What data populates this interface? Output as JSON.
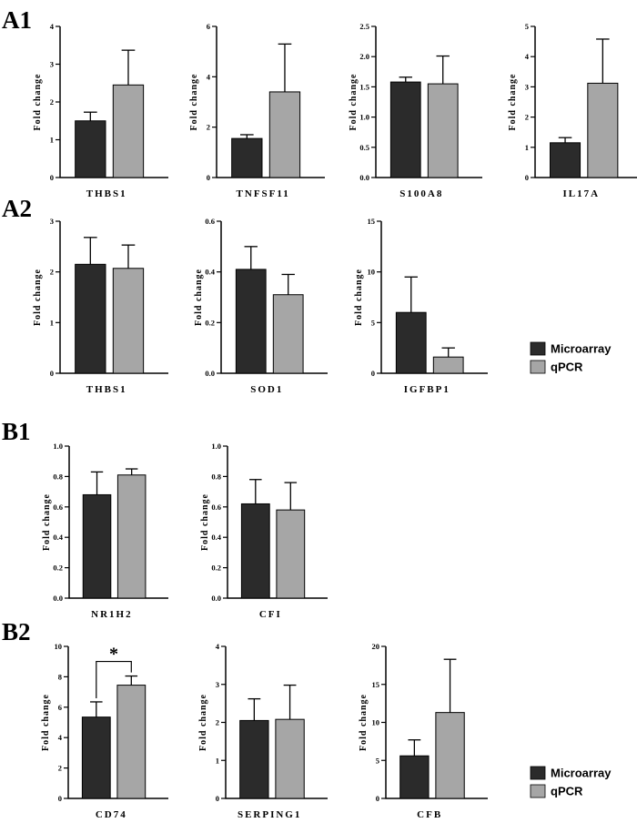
{
  "panels": {
    "a1": "A1",
    "a2": "A2",
    "b1": "B1",
    "b2": "B2"
  },
  "colors": {
    "microarray": "#2b2b2b",
    "qpcr": "#a6a6a6",
    "axis": "#000000"
  },
  "legend": {
    "microarray": "Microarray",
    "qpcr": "qPCR"
  },
  "chart_data": [
    {
      "type": "bar",
      "panel": "A1",
      "gene": "THBS1",
      "ylabel": "Fold change",
      "ylim": [
        0,
        4
      ],
      "yticks": [
        0,
        1,
        2,
        3,
        4
      ],
      "tick_labels": [
        "0",
        "1",
        "2",
        "3",
        "4"
      ],
      "series": [
        {
          "name": "Microarray",
          "values": [
            1.5
          ],
          "errors": [
            0.23
          ]
        },
        {
          "name": "qPCR",
          "values": [
            2.45
          ],
          "errors": [
            0.92
          ]
        }
      ]
    },
    {
      "type": "bar",
      "panel": "A1",
      "gene": "TNFSF11",
      "ylabel": "Fold change",
      "ylim": [
        0,
        6
      ],
      "yticks": [
        0,
        2,
        4,
        6
      ],
      "tick_labels": [
        "0",
        "2",
        "4",
        "6"
      ],
      "series": [
        {
          "name": "Microarray",
          "values": [
            1.55
          ],
          "errors": [
            0.15
          ]
        },
        {
          "name": "qPCR",
          "values": [
            3.4
          ],
          "errors": [
            1.9
          ]
        }
      ]
    },
    {
      "type": "bar",
      "panel": "A1",
      "gene": "S100A8",
      "ylabel": "Fold change",
      "ylim": [
        0,
        2.5
      ],
      "yticks": [
        0,
        0.5,
        1,
        1.5,
        2,
        2.5
      ],
      "tick_labels": [
        "0.0",
        "0.5",
        "1.0",
        "1.5",
        "2.0",
        "2.5"
      ],
      "series": [
        {
          "name": "Microarray",
          "values": [
            1.58
          ],
          "errors": [
            0.08
          ]
        },
        {
          "name": "qPCR",
          "values": [
            1.55
          ],
          "errors": [
            0.46
          ]
        }
      ]
    },
    {
      "type": "bar",
      "panel": "A1",
      "gene": "IL17A",
      "ylabel": "Fold change",
      "ylim": [
        0,
        5
      ],
      "yticks": [
        0,
        1,
        2,
        3,
        4,
        5
      ],
      "tick_labels": [
        "0",
        "1",
        "2",
        "3",
        "4",
        "5"
      ],
      "series": [
        {
          "name": "Microarray",
          "values": [
            1.15
          ],
          "errors": [
            0.17
          ]
        },
        {
          "name": "qPCR",
          "values": [
            3.12
          ],
          "errors": [
            1.46
          ]
        }
      ]
    },
    {
      "type": "bar",
      "panel": "A2",
      "gene": "THBS1",
      "ylabel": "Fold change",
      "ylim": [
        0,
        3
      ],
      "yticks": [
        0,
        1,
        2,
        3
      ],
      "tick_labels": [
        "0",
        "1",
        "2",
        "3"
      ],
      "series": [
        {
          "name": "Microarray",
          "values": [
            2.15
          ],
          "errors": [
            0.53
          ]
        },
        {
          "name": "qPCR",
          "values": [
            2.07
          ],
          "errors": [
            0.46
          ]
        }
      ]
    },
    {
      "type": "bar",
      "panel": "A2",
      "gene": "SOD1",
      "ylabel": "Fold change",
      "ylim": [
        0,
        0.6
      ],
      "yticks": [
        0,
        0.2,
        0.4,
        0.6
      ],
      "tick_labels": [
        "0.0",
        "0.2",
        "0.4",
        "0.6"
      ],
      "series": [
        {
          "name": "Microarray",
          "values": [
            0.41
          ],
          "errors": [
            0.09
          ]
        },
        {
          "name": "qPCR",
          "values": [
            0.31
          ],
          "errors": [
            0.08
          ]
        }
      ]
    },
    {
      "type": "bar",
      "panel": "A2",
      "gene": "IGFBP1",
      "ylabel": "Fold change",
      "ylim": [
        0,
        15
      ],
      "yticks": [
        0,
        5,
        10,
        15
      ],
      "tick_labels": [
        "0",
        "5",
        "10",
        "15"
      ],
      "series": [
        {
          "name": "Microarray",
          "values": [
            6.0
          ],
          "errors": [
            3.5
          ]
        },
        {
          "name": "qPCR",
          "values": [
            1.6
          ],
          "errors": [
            0.9
          ]
        }
      ]
    },
    {
      "type": "bar",
      "panel": "B1",
      "gene": "NR1H2",
      "ylabel": "Fold change",
      "ylim": [
        0,
        1
      ],
      "yticks": [
        0,
        0.2,
        0.4,
        0.6,
        0.8,
        1
      ],
      "tick_labels": [
        "0.0",
        "0.2",
        "0.4",
        "0.6",
        "0.8",
        "1.0"
      ],
      "series": [
        {
          "name": "Microarray",
          "values": [
            0.68
          ],
          "errors": [
            0.15
          ]
        },
        {
          "name": "qPCR",
          "values": [
            0.81
          ],
          "errors": [
            0.04
          ]
        }
      ]
    },
    {
      "type": "bar",
      "panel": "B1",
      "gene": "CFI",
      "ylabel": "Fold change",
      "ylim": [
        0,
        1
      ],
      "yticks": [
        0,
        0.2,
        0.4,
        0.6,
        0.8,
        1
      ],
      "tick_labels": [
        "0.0",
        "0.2",
        "0.4",
        "0.6",
        "0.8",
        "1.0"
      ],
      "series": [
        {
          "name": "Microarray",
          "values": [
            0.62
          ],
          "errors": [
            0.16
          ]
        },
        {
          "name": "qPCR",
          "values": [
            0.58
          ],
          "errors": [
            0.18
          ]
        }
      ]
    },
    {
      "type": "bar",
      "panel": "B2",
      "gene": "CD74",
      "ylabel": "Fold change",
      "ylim": [
        0,
        10
      ],
      "yticks": [
        0,
        2,
        4,
        6,
        8,
        10
      ],
      "tick_labels": [
        "0",
        "2",
        "4",
        "6",
        "8",
        "10"
      ],
      "series": [
        {
          "name": "Microarray",
          "values": [
            5.35
          ],
          "errors": [
            1.0
          ]
        },
        {
          "name": "qPCR",
          "values": [
            7.45
          ],
          "errors": [
            0.6
          ]
        }
      ],
      "annotation": "*"
    },
    {
      "type": "bar",
      "panel": "B2",
      "gene": "SERPING1",
      "ylabel": "Fold change",
      "ylim": [
        0,
        4
      ],
      "yticks": [
        0,
        1,
        2,
        3,
        4
      ],
      "tick_labels": [
        "0",
        "1",
        "2",
        "3",
        "4"
      ],
      "series": [
        {
          "name": "Microarray",
          "values": [
            2.05
          ],
          "errors": [
            0.57
          ]
        },
        {
          "name": "qPCR",
          "values": [
            2.08
          ],
          "errors": [
            0.9
          ]
        }
      ]
    },
    {
      "type": "bar",
      "panel": "B2",
      "gene": "CFB",
      "ylabel": "Fold change",
      "ylim": [
        0,
        20
      ],
      "yticks": [
        0,
        5,
        10,
        15,
        20
      ],
      "tick_labels": [
        "0",
        "5",
        "10",
        "15",
        "20"
      ],
      "series": [
        {
          "name": "Microarray",
          "values": [
            5.6
          ],
          "errors": [
            2.1
          ]
        },
        {
          "name": "qPCR",
          "values": [
            11.3
          ],
          "errors": [
            7.0
          ]
        }
      ]
    }
  ]
}
